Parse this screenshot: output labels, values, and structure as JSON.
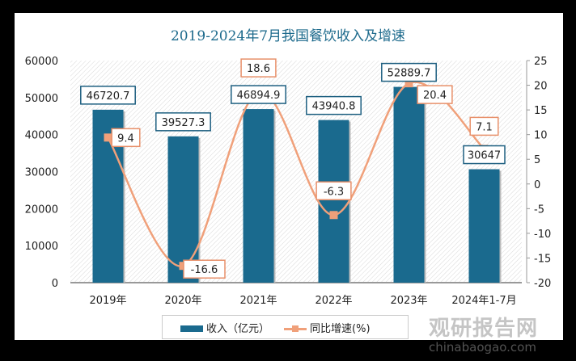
{
  "chart_data": {
    "type": "bar+line",
    "title": "2019-2024年7月我国餐饮收入及增速",
    "categories": [
      "2019年",
      "2020年",
      "2021年",
      "2022年",
      "2023年",
      "2024年1-7月"
    ],
    "series": [
      {
        "name": "收入（亿元）",
        "type": "bar",
        "axis": "left",
        "values": [
          46720.7,
          39527.3,
          46894.9,
          43940.8,
          52889.7,
          30647
        ],
        "labels": [
          "46720.7",
          "39527.3",
          "46894.9",
          "43940.8",
          "52889.7",
          "30647"
        ],
        "color": "#1a6a8e"
      },
      {
        "name": "同比增速(%)",
        "type": "line",
        "axis": "right",
        "values": [
          9.4,
          -16.6,
          18.6,
          -6.3,
          20.4,
          7.1
        ],
        "labels": [
          "9.4",
          "-16.6",
          "18.6",
          "-6.3",
          "20.4",
          "7.1"
        ],
        "color": "#f0a07a"
      }
    ],
    "y_left": {
      "range": [
        0,
        60000
      ],
      "ticks": [
        "0",
        "10000",
        "20000",
        "30000",
        "40000",
        "50000",
        "60000"
      ]
    },
    "y_right": {
      "range": [
        -20,
        25
      ],
      "ticks": [
        "-20",
        "-15",
        "-10",
        "-5",
        "0",
        "5",
        "10",
        "15",
        "20",
        "25"
      ]
    },
    "legend_position": "bottom",
    "grid": false
  },
  "watermark": {
    "name": "观研报告网",
    "url": "chinabaogao.com"
  }
}
